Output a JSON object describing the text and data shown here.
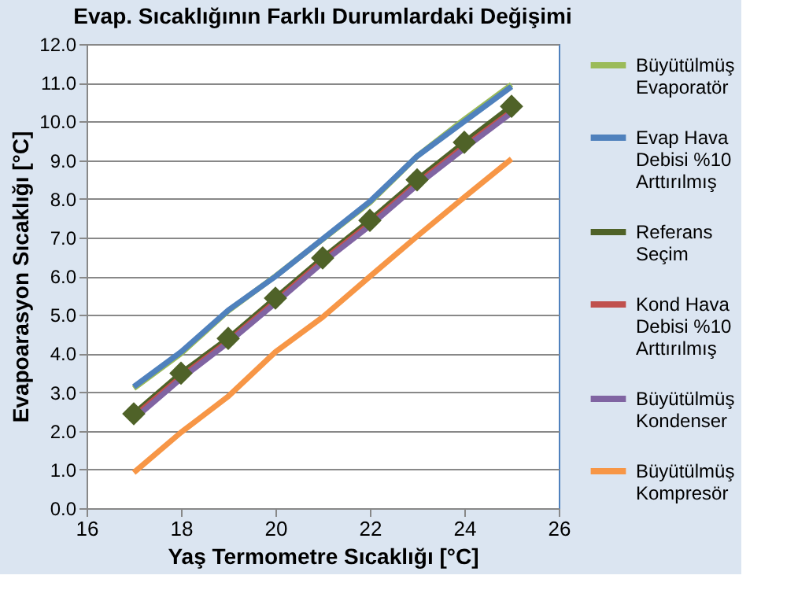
{
  "chart_data": {
    "type": "line",
    "title": "Evap. Sıcaklığının  Farklı Durumlardaki  Değişimi",
    "xlabel": "Yaş  Termometre  Sıcaklığı  [°C]",
    "ylabel": "Evapoarasyon Sıcaklığı  [°C]",
    "x": [
      17,
      18,
      19,
      20,
      21,
      22,
      23,
      24,
      25
    ],
    "series": [
      {
        "name": "Büyütülmüş Evaporatör",
        "color": "#9bbb59",
        "marker": "none",
        "values": [
          3.1,
          4.0,
          5.1,
          6.0,
          6.95,
          7.9,
          9.1,
          10.05,
          10.95
        ]
      },
      {
        "name": "Evap Hava Debisi %10 Arttırılmış",
        "color": "#4f81bd",
        "marker": "none",
        "values": [
          3.14,
          4.04,
          5.12,
          5.99,
          6.96,
          7.93,
          9.1,
          10.0,
          10.9
        ]
      },
      {
        "name": "Referans Seçim",
        "color": "#4f6228",
        "marker": "diamond",
        "values": [
          2.44,
          3.49,
          4.39,
          5.43,
          6.47,
          7.44,
          8.49,
          9.46,
          10.39
        ]
      },
      {
        "name": "Kond Hava Debisi %10 Arttırılmış",
        "color": "#c0504d",
        "marker": "none",
        "values": [
          2.37,
          3.4,
          4.32,
          5.35,
          6.4,
          7.36,
          8.4,
          9.36,
          10.26
        ]
      },
      {
        "name": "Büyütülmüş Kondenser",
        "color": "#8064a2",
        "marker": "none",
        "values": [
          2.3,
          3.35,
          4.28,
          5.3,
          6.35,
          7.3,
          8.35,
          9.3,
          10.22
        ]
      },
      {
        "name": "Büyütülmüş Kompresör",
        "color": "#f79646",
        "marker": "none",
        "values": [
          0.92,
          1.96,
          2.89,
          4.04,
          4.94,
          5.99,
          7.03,
          8.04,
          9.03
        ]
      }
    ],
    "xlim": [
      16,
      26
    ],
    "xticks": [
      16,
      18,
      20,
      22,
      24,
      26
    ],
    "ylim": [
      0,
      12
    ],
    "yticks": [
      {
        "value": 0,
        "label": "0.0"
      },
      {
        "value": 1,
        "label": "1.0"
      },
      {
        "value": 2,
        "label": "2.0"
      },
      {
        "value": 3,
        "label": "3.0"
      },
      {
        "value": 4,
        "label": "4.0"
      },
      {
        "value": 5,
        "label": "5.0"
      },
      {
        "value": 6,
        "label": "6.0"
      },
      {
        "value": 7,
        "label": "7.0"
      },
      {
        "value": 8,
        "label": "8.0"
      },
      {
        "value": 9,
        "label": "9.0"
      },
      {
        "value": 10,
        "label": "10.0"
      },
      {
        "value": 11,
        "label": "11.0"
      },
      {
        "value": 12,
        "label": "12.0"
      }
    ],
    "grid": "y",
    "legend": "right",
    "line_style": "solid"
  }
}
